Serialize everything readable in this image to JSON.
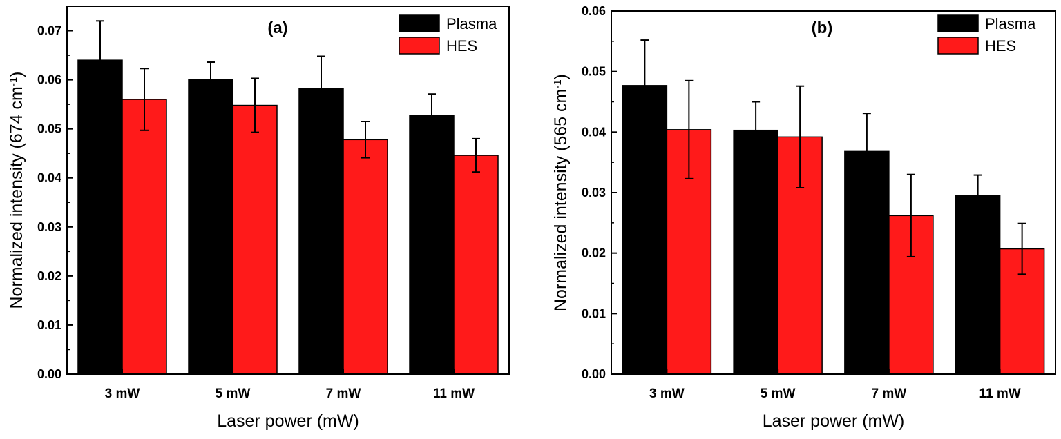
{
  "chart_data": [
    {
      "type": "bar",
      "title": "(a)",
      "xlabel": "Laser power (mW)",
      "ylabel_main": "Normalized intensity (674 cm",
      "ylabel_sup": "-1",
      "ylabel_tail": ")",
      "categories": [
        "3 mW",
        "5 mW",
        "7 mW",
        "11 mW"
      ],
      "ylim": [
        0,
        0.075
      ],
      "yticks": [
        0,
        0.01,
        0.02,
        0.03,
        0.04,
        0.05,
        0.06,
        0.07
      ],
      "ytick_labels": [
        "0.00",
        "0.01",
        "0.02",
        "0.03",
        "0.04",
        "0.05",
        "0.06",
        "0.07"
      ],
      "legend_position": "top-right",
      "series": [
        {
          "name": "Plasma",
          "color": "#000000",
          "values": [
            0.064,
            0.06,
            0.0582,
            0.0528
          ],
          "errors": [
            0.008,
            0.0036,
            0.0066,
            0.0043
          ]
        },
        {
          "name": "HES",
          "color": "#ff1a1a",
          "values": [
            0.056,
            0.0548,
            0.0478,
            0.0446
          ],
          "errors": [
            0.0063,
            0.0055,
            0.0037,
            0.0034
          ]
        }
      ]
    },
    {
      "type": "bar",
      "title": "(b)",
      "xlabel": "Laser power (mW)",
      "ylabel_main": "Normalized intensity (565 cm",
      "ylabel_sup": "-1",
      "ylabel_tail": ")",
      "categories": [
        "3 mW",
        "5 mW",
        "7 mW",
        "11 mW"
      ],
      "ylim": [
        0,
        0.06
      ],
      "yticks": [
        0,
        0.01,
        0.02,
        0.03,
        0.04,
        0.05,
        0.06
      ],
      "ytick_labels": [
        "0.00",
        "0.01",
        "0.02",
        "0.03",
        "0.04",
        "0.05",
        "0.06"
      ],
      "legend_position": "top-right",
      "series": [
        {
          "name": "Plasma",
          "color": "#000000",
          "values": [
            0.0477,
            0.0403,
            0.0368,
            0.0295
          ],
          "errors": [
            0.0075,
            0.0047,
            0.0063,
            0.0034
          ]
        },
        {
          "name": "HES",
          "color": "#ff1a1a",
          "values": [
            0.0404,
            0.0392,
            0.0262,
            0.0207
          ],
          "errors": [
            0.0081,
            0.0084,
            0.0068,
            0.0042
          ]
        }
      ]
    }
  ]
}
